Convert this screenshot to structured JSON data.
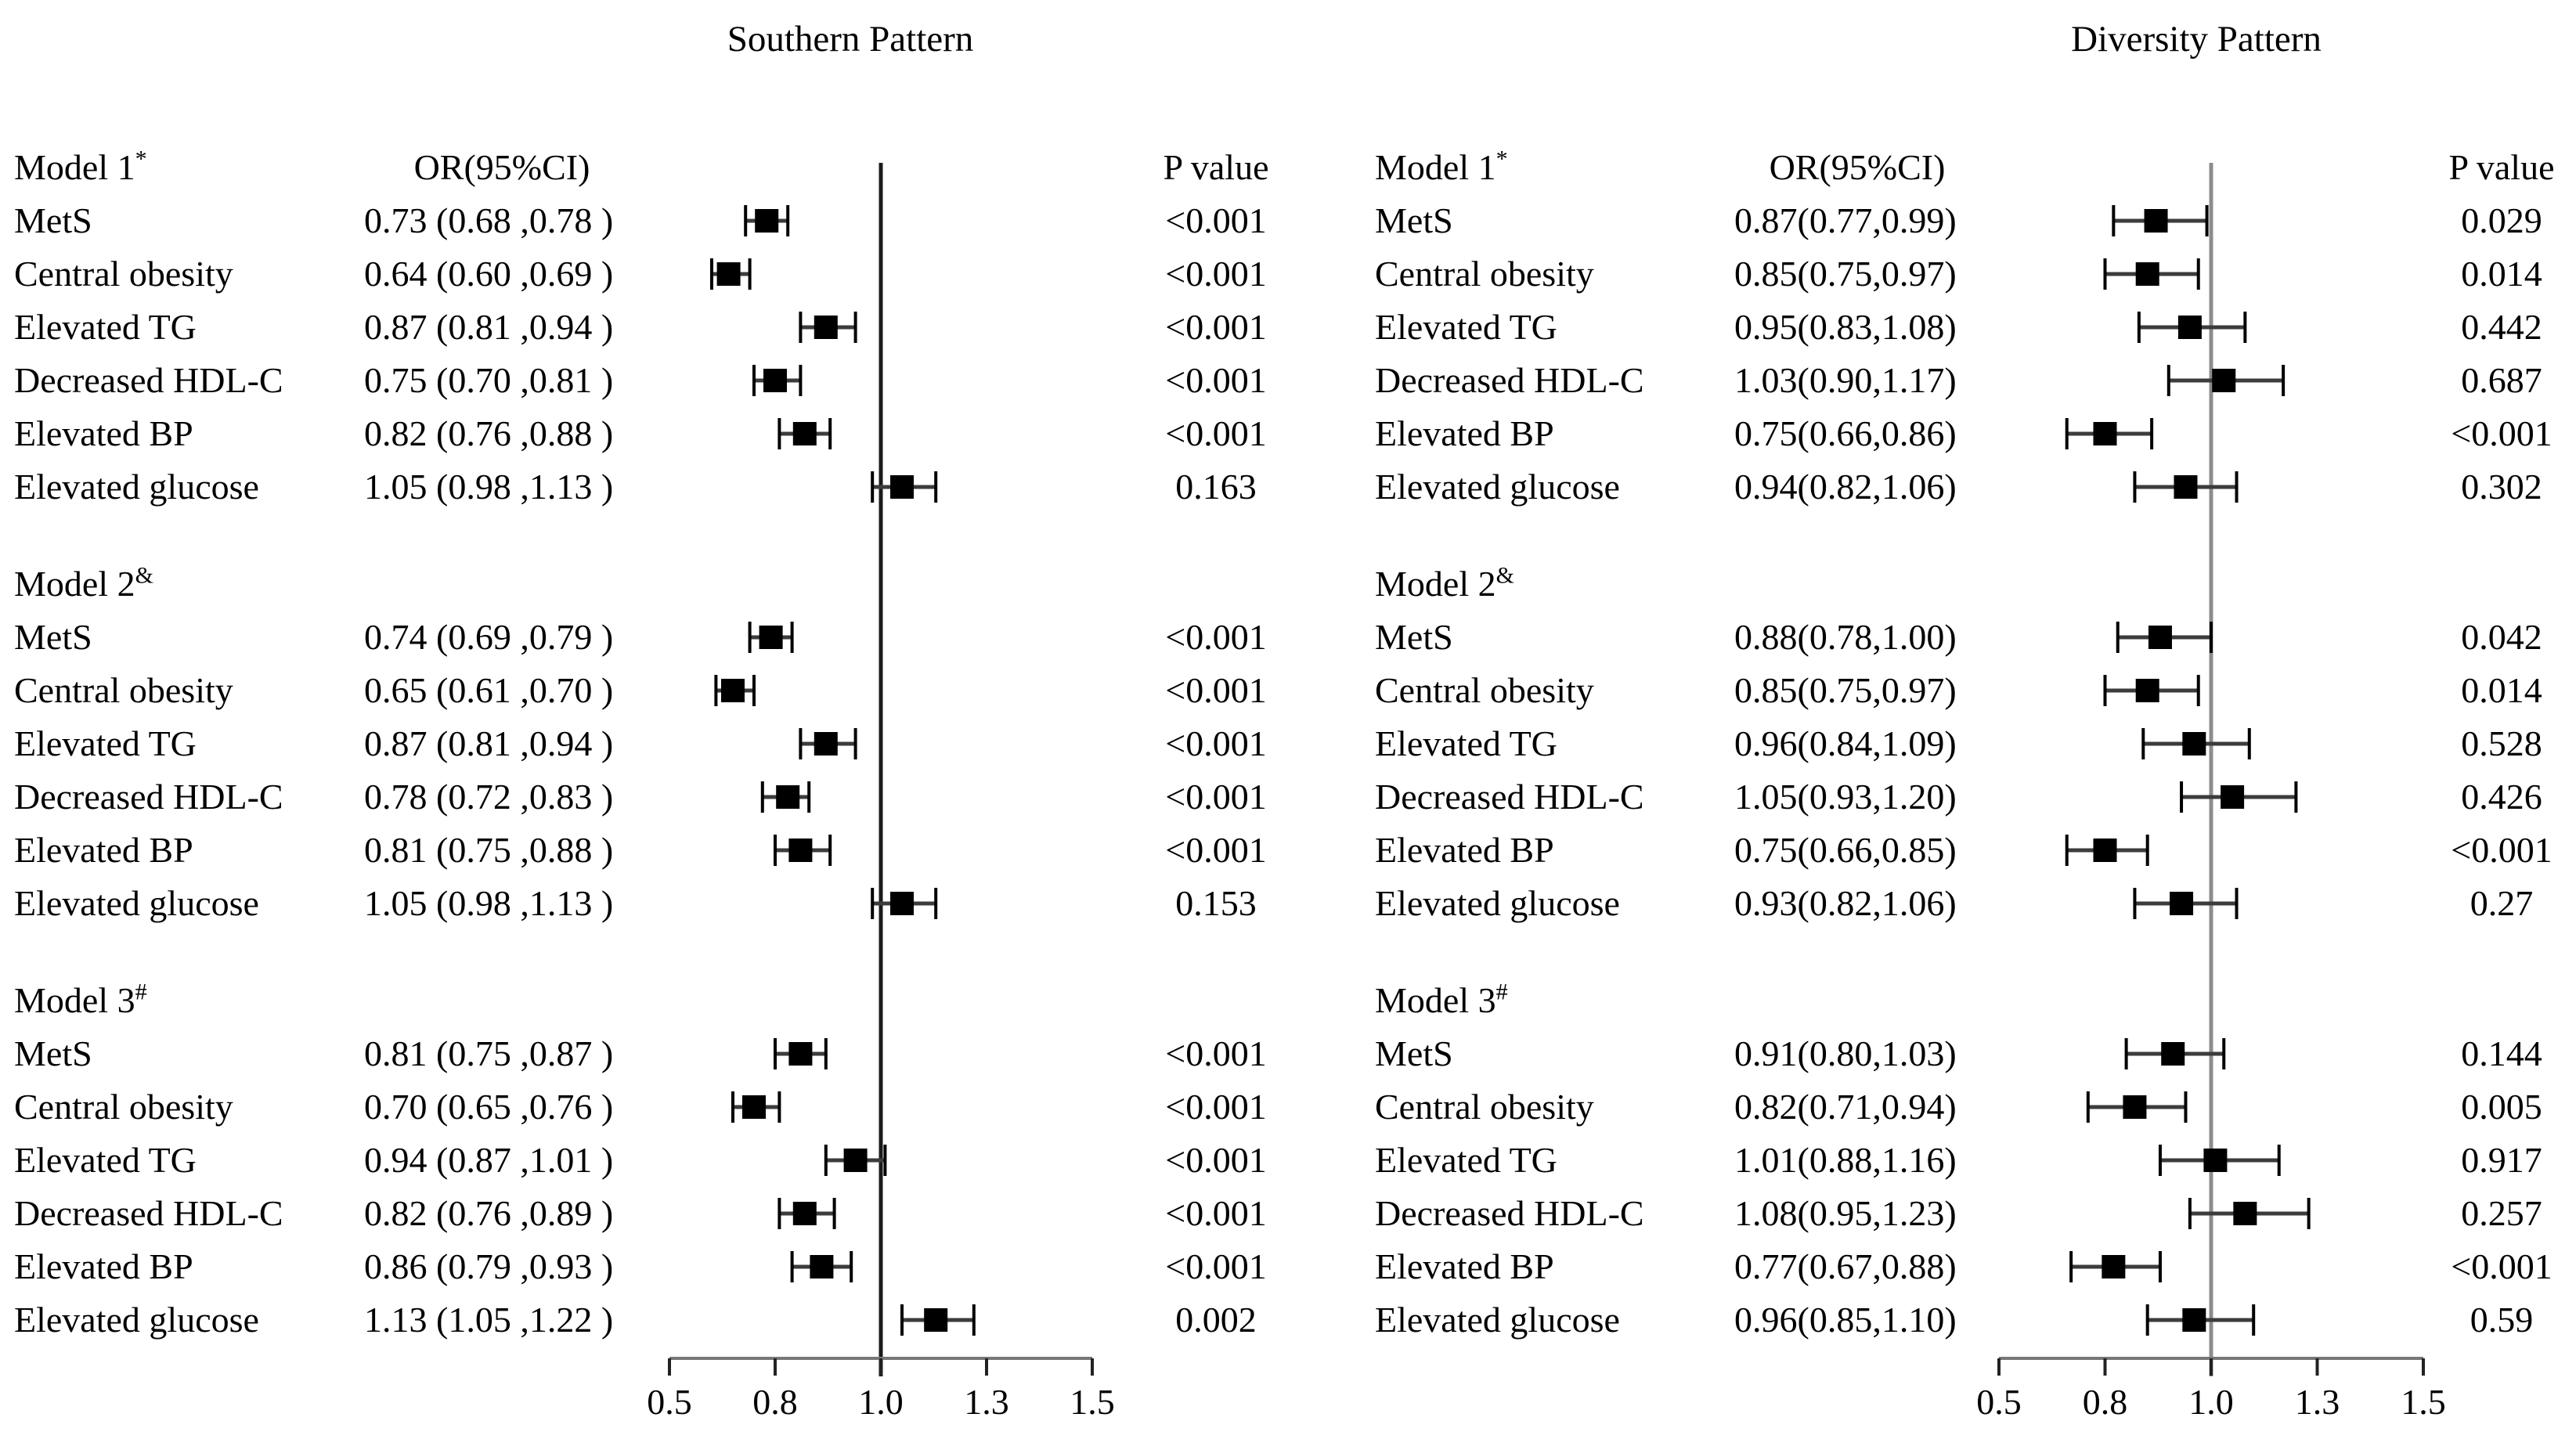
{
  "figure": {
    "background": "#ffffff",
    "text_color": "#000000",
    "marker_color": "#000000",
    "ci_line_color": "#3c3c3c",
    "axis_color": "#777777"
  },
  "chart_data": [
    {
      "type": "forest",
      "title": "Southern Pattern",
      "or_header": "OR(95%CI)",
      "p_header": "P value",
      "x_axis": {
        "tick_labels": [
          "0.5",
          "0.8",
          "1.0",
          "1.3",
          "1.5"
        ],
        "tick_values": [
          0.5,
          0.8,
          1.0,
          1.3,
          1.5
        ],
        "range": [
          0.5,
          1.5
        ],
        "reference_line": 1.0,
        "reference_line_color": "#1b1b1b"
      },
      "groups": [
        {
          "model": "Model 1",
          "model_sup": "*",
          "rows": [
            {
              "label": "MetS",
              "or_text": "0.73 (0.68 ,0.78 )",
              "or": 0.73,
              "ci": [
                0.68,
                0.78
              ],
              "p": "<0.001"
            },
            {
              "label": "Central obesity",
              "or_text": "0.64 (0.60 ,0.69 )",
              "or": 0.64,
              "ci": [
                0.6,
                0.69
              ],
              "p": "<0.001"
            },
            {
              "label": "Elevated TG",
              "or_text": "0.87 (0.81 ,0.94 )",
              "or": 0.87,
              "ci": [
                0.81,
                0.94
              ],
              "p": "<0.001"
            },
            {
              "label": "Decreased HDL-C",
              "or_text": "0.75 (0.70 ,0.81 )",
              "or": 0.75,
              "ci": [
                0.7,
                0.81
              ],
              "p": "<0.001"
            },
            {
              "label": "Elevated BP",
              "or_text": "0.82 (0.76 ,0.88 )",
              "or": 0.82,
              "ci": [
                0.76,
                0.88
              ],
              "p": "<0.001"
            },
            {
              "label": "Elevated glucose",
              "or_text": "1.05 (0.98 ,1.13 )",
              "or": 1.05,
              "ci": [
                0.98,
                1.13
              ],
              "p": "0.163"
            }
          ]
        },
        {
          "model": "Model 2",
          "model_sup": "&",
          "rows": [
            {
              "label": "MetS",
              "or_text": "0.74 (0.69 ,0.79 )",
              "or": 0.74,
              "ci": [
                0.69,
                0.79
              ],
              "p": "<0.001"
            },
            {
              "label": "Central obesity",
              "or_text": "0.65 (0.61 ,0.70 )",
              "or": 0.65,
              "ci": [
                0.61,
                0.7
              ],
              "p": "<0.001"
            },
            {
              "label": "Elevated TG",
              "or_text": "0.87 (0.81 ,0.94 )",
              "or": 0.87,
              "ci": [
                0.81,
                0.94
              ],
              "p": "<0.001"
            },
            {
              "label": "Decreased HDL-C",
              "or_text": "0.78 (0.72 ,0.83 )",
              "or": 0.78,
              "ci": [
                0.72,
                0.83
              ],
              "p": "<0.001"
            },
            {
              "label": "Elevated BP",
              "or_text": "0.81 (0.75 ,0.88 )",
              "or": 0.81,
              "ci": [
                0.75,
                0.88
              ],
              "p": "<0.001"
            },
            {
              "label": "Elevated glucose",
              "or_text": "1.05 (0.98 ,1.13 )",
              "or": 1.05,
              "ci": [
                0.98,
                1.13
              ],
              "p": "0.153"
            }
          ]
        },
        {
          "model": "Model 3",
          "model_sup": "#",
          "rows": [
            {
              "label": "MetS",
              "or_text": "0.81 (0.75 ,0.87 )",
              "or": 0.81,
              "ci": [
                0.75,
                0.87
              ],
              "p": "<0.001"
            },
            {
              "label": "Central obesity",
              "or_text": "0.70 (0.65 ,0.76 )",
              "or": 0.7,
              "ci": [
                0.65,
                0.76
              ],
              "p": "<0.001"
            },
            {
              "label": "Elevated TG",
              "or_text": "0.94 (0.87 ,1.01 )",
              "or": 0.94,
              "ci": [
                0.87,
                1.01
              ],
              "p": "<0.001"
            },
            {
              "label": "Decreased HDL-C",
              "or_text": "0.82 (0.76 ,0.89 )",
              "or": 0.82,
              "ci": [
                0.76,
                0.89
              ],
              "p": "<0.001"
            },
            {
              "label": "Elevated BP",
              "or_text": "0.86 (0.79 ,0.93 )",
              "or": 0.86,
              "ci": [
                0.79,
                0.93
              ],
              "p": "<0.001"
            },
            {
              "label": "Elevated glucose",
              "or_text": "1.13 (1.05 ,1.22 )",
              "or": 1.13,
              "ci": [
                1.05,
                1.22
              ],
              "p": "0.002"
            }
          ]
        }
      ]
    },
    {
      "type": "forest",
      "title": "Diversity Pattern",
      "or_header": "OR(95%CI)",
      "p_header": "P value",
      "x_axis": {
        "tick_labels": [
          "0.5",
          "0.8",
          "1.0",
          "1.3",
          "1.5"
        ],
        "tick_values": [
          0.5,
          0.8,
          1.0,
          1.3,
          1.5
        ],
        "range": [
          0.5,
          1.5
        ],
        "reference_line": 1.0,
        "reference_line_color": "#8c8c8c"
      },
      "groups": [
        {
          "model": "Model 1",
          "model_sup": "*",
          "rows": [
            {
              "label": "MetS",
              "or_text": "0.87(0.77,0.99)",
              "or": 0.87,
              "ci": [
                0.77,
                0.99
              ],
              "p": "0.029"
            },
            {
              "label": "Central obesity",
              "or_text": "0.85(0.75,0.97)",
              "or": 0.85,
              "ci": [
                0.75,
                0.97
              ],
              "p": "0.014"
            },
            {
              "label": "Elevated TG",
              "or_text": "0.95(0.83,1.08)",
              "or": 0.95,
              "ci": [
                0.83,
                1.08
              ],
              "p": "0.442"
            },
            {
              "label": "Decreased HDL-C",
              "or_text": "1.03(0.90,1.17)",
              "or": 1.03,
              "ci": [
                0.9,
                1.17
              ],
              "p": "0.687"
            },
            {
              "label": "Elevated BP",
              "or_text": "0.75(0.66,0.86)",
              "or": 0.75,
              "ci": [
                0.66,
                0.86
              ],
              "p": "<0.001"
            },
            {
              "label": "Elevated glucose",
              "or_text": "0.94(0.82,1.06)",
              "or": 0.94,
              "ci": [
                0.82,
                1.06
              ],
              "p": "0.302"
            }
          ]
        },
        {
          "model": "Model 2",
          "model_sup": "&",
          "rows": [
            {
              "label": "MetS",
              "or_text": "0.88(0.78,1.00)",
              "or": 0.88,
              "ci": [
                0.78,
                1.0
              ],
              "p": "0.042"
            },
            {
              "label": "Central obesity",
              "or_text": "0.85(0.75,0.97)",
              "or": 0.85,
              "ci": [
                0.75,
                0.97
              ],
              "p": "0.014"
            },
            {
              "label": "Elevated TG",
              "or_text": "0.96(0.84,1.09)",
              "or": 0.96,
              "ci": [
                0.84,
                1.09
              ],
              "p": "0.528"
            },
            {
              "label": "Decreased HDL-C",
              "or_text": "1.05(0.93,1.20)",
              "or": 1.05,
              "ci": [
                0.93,
                1.2
              ],
              "p": "0.426"
            },
            {
              "label": "Elevated BP",
              "or_text": "0.75(0.66,0.85)",
              "or": 0.75,
              "ci": [
                0.66,
                0.85
              ],
              "p": "<0.001"
            },
            {
              "label": "Elevated glucose",
              "or_text": "0.93(0.82,1.06)",
              "or": 0.93,
              "ci": [
                0.82,
                1.06
              ],
              "p": "0.27"
            }
          ]
        },
        {
          "model": "Model 3",
          "model_sup": "#",
          "rows": [
            {
              "label": "MetS",
              "or_text": "0.91(0.80,1.03)",
              "or": 0.91,
              "ci": [
                0.8,
                1.03
              ],
              "p": "0.144"
            },
            {
              "label": "Central obesity",
              "or_text": "0.82(0.71,0.94)",
              "or": 0.82,
              "ci": [
                0.71,
                0.94
              ],
              "p": "0.005"
            },
            {
              "label": "Elevated TG",
              "or_text": "1.01(0.88,1.16)",
              "or": 1.01,
              "ci": [
                0.88,
                1.16
              ],
              "p": "0.917"
            },
            {
              "label": "Decreased HDL-C",
              "or_text": "1.08(0.95,1.23)",
              "or": 1.08,
              "ci": [
                0.95,
                1.23
              ],
              "p": "0.257"
            },
            {
              "label": "Elevated BP",
              "or_text": "0.77(0.67,0.88)",
              "or": 0.77,
              "ci": [
                0.67,
                0.88
              ],
              "p": "<0.001"
            },
            {
              "label": "Elevated glucose",
              "or_text": "0.96(0.85,1.10)",
              "or": 0.96,
              "ci": [
                0.85,
                1.1
              ],
              "p": "0.59"
            }
          ]
        }
      ]
    }
  ]
}
